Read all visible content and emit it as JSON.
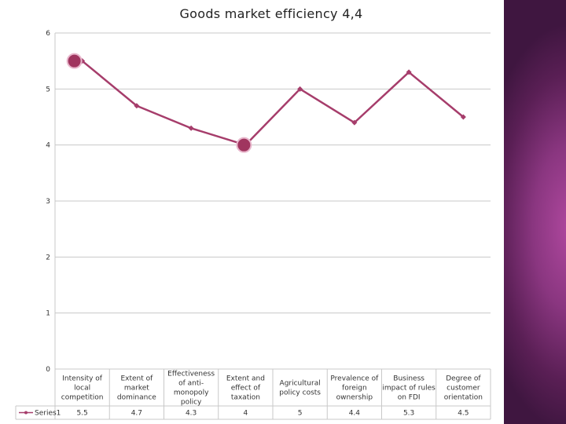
{
  "chart_data": {
    "type": "line",
    "title": "Goods market efficiency 4,4",
    "categories": [
      [
        "Intensity of",
        "local",
        "competition"
      ],
      [
        "Extent of",
        "market",
        "dominance"
      ],
      [
        "Effectiveness",
        "of anti-",
        "monopoly",
        "policy"
      ],
      [
        "Extent and",
        "effect of",
        "taxation"
      ],
      [
        "Agricultural",
        "policy costs"
      ],
      [
        "Prevalence of",
        "foreign",
        "ownership"
      ],
      [
        "Business",
        "impact of rules",
        "on FDI"
      ],
      [
        "Degree of",
        "customer",
        "orientation"
      ]
    ],
    "series": [
      {
        "name": "Series1",
        "values": [
          5.5,
          4.7,
          4.3,
          4,
          5,
          4.4,
          5.3,
          4.5
        ],
        "labels": [
          "5.5",
          "4.7",
          "4.3",
          "4",
          "5",
          "4.4",
          "5.3",
          "4.5"
        ],
        "color": "#a63d6b"
      }
    ],
    "highlighted": [
      0,
      3
    ],
    "ylim": [
      0,
      6
    ],
    "yticks": [
      "0",
      "1",
      "2",
      "3",
      "4",
      "5",
      "6"
    ],
    "grid": true,
    "legend": "data-table"
  },
  "colors": {
    "line": "#a63d6b",
    "marker_highlight": "#a0355f",
    "grid": "#c8c8c8",
    "side_band": "#8a3680"
  }
}
